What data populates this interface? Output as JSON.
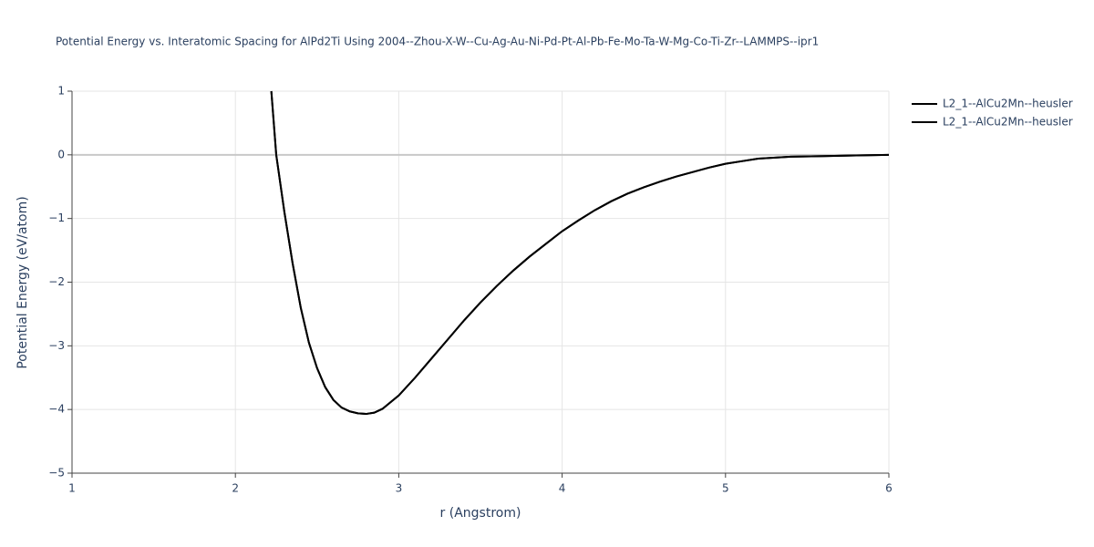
{
  "chart_data": {
    "type": "line",
    "title": "Potential Energy vs. Interatomic Spacing for AlPd2Ti Using 2004--Zhou-X-W--Cu-Ag-Au-Ni-Pd-Pt-Al-Pb-Fe-Mo-Ta-W-Mg-Co-Ti-Zr--LAMMPS--ipr1",
    "x_label": "r (Angstrom)",
    "y_label": "Potential Energy (eV/atom)",
    "x": [
      2.22,
      2.25,
      2.3,
      2.35,
      2.4,
      2.45,
      2.5,
      2.55,
      2.6,
      2.65,
      2.7,
      2.75,
      2.8,
      2.85,
      2.9,
      3.0,
      3.1,
      3.2,
      3.3,
      3.4,
      3.5,
      3.6,
      3.7,
      3.8,
      3.9,
      4.0,
      4.1,
      4.2,
      4.3,
      4.4,
      4.5,
      4.6,
      4.7,
      4.8,
      4.9,
      5.0,
      5.1,
      5.2,
      5.4,
      5.6,
      5.8,
      6.0
    ],
    "series": [
      {
        "name": "L2_1--AlCu2Mn--heusler",
        "color": "#000000",
        "values": [
          1.0,
          0.0,
          -0.9,
          -1.7,
          -2.4,
          -2.95,
          -3.35,
          -3.65,
          -3.85,
          -3.97,
          -4.03,
          -4.06,
          -4.07,
          -4.05,
          -3.99,
          -3.78,
          -3.5,
          -3.2,
          -2.9,
          -2.6,
          -2.32,
          -2.06,
          -1.82,
          -1.6,
          -1.4,
          -1.2,
          -1.03,
          -0.87,
          -0.73,
          -0.61,
          -0.51,
          -0.42,
          -0.34,
          -0.27,
          -0.2,
          -0.14,
          -0.1,
          -0.06,
          -0.03,
          -0.02,
          -0.01,
          0
        ]
      },
      {
        "name": "L2_1--AlCu2Mn--heusler",
        "color": "#000000",
        "values": [
          1.0,
          0.0,
          -0.9,
          -1.7,
          -2.4,
          -2.95,
          -3.35,
          -3.65,
          -3.85,
          -3.97,
          -4.03,
          -4.06,
          -4.07,
          -4.05,
          -3.99,
          -3.78,
          -3.5,
          -3.2,
          -2.9,
          -2.6,
          -2.32,
          -2.06,
          -1.82,
          -1.6,
          -1.4,
          -1.2,
          -1.03,
          -0.87,
          -0.73,
          -0.61,
          -0.51,
          -0.42,
          -0.34,
          -0.27,
          -0.2,
          -0.14,
          -0.1,
          -0.06,
          -0.03,
          -0.02,
          -0.01,
          0
        ]
      }
    ],
    "xlim": [
      1,
      6
    ],
    "ylim": [
      -5,
      1
    ],
    "xticks": [
      1,
      2,
      3,
      4,
      5,
      6
    ],
    "yticks": [
      1,
      0,
      {
        "value": -1,
        "label": "−1"
      },
      {
        "value": -2,
        "label": "−2"
      },
      {
        "value": -3,
        "label": "−3"
      },
      {
        "value": -4,
        "label": "−4"
      },
      {
        "value": -5,
        "label": "−5"
      }
    ],
    "grid": true,
    "legend": "top-right"
  }
}
